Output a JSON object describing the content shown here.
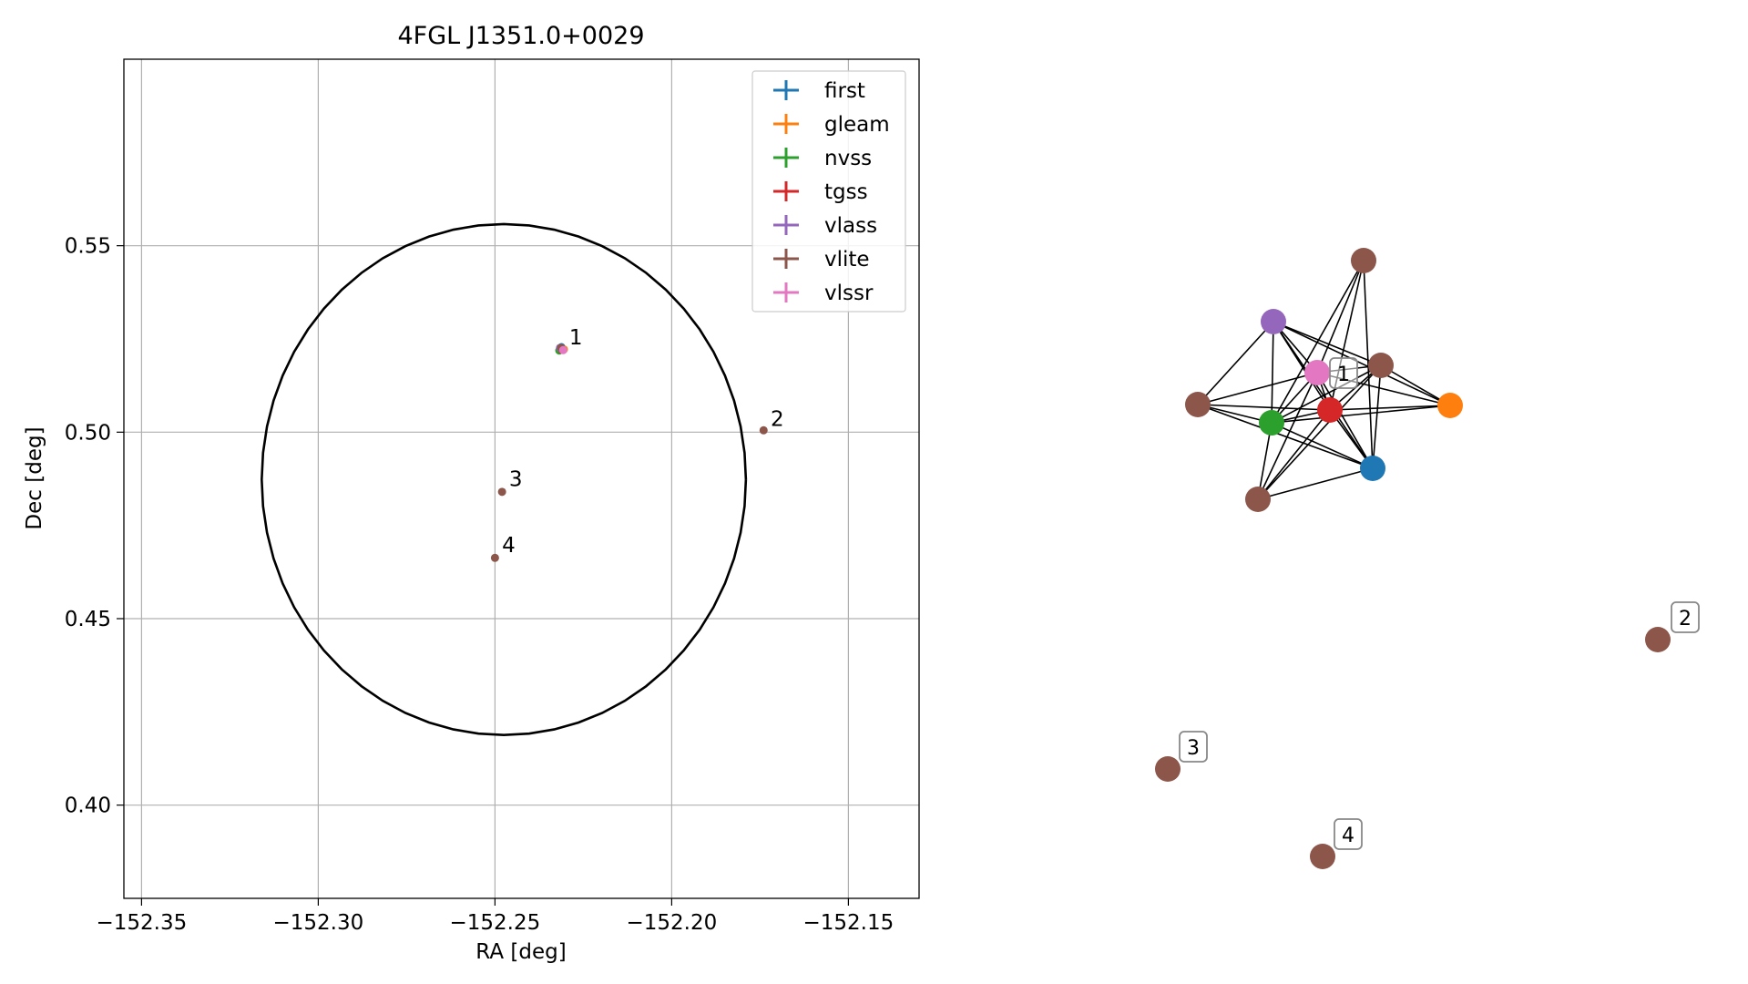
{
  "chart_data": [
    {
      "type": "scatter",
      "title": "4FGL J1351.0+0029",
      "xlabel": "RA [deg]",
      "ylabel": "Dec [deg]",
      "xlim": [
        -152.355,
        -152.13
      ],
      "ylim": [
        0.375,
        0.6
      ],
      "xticks": [
        -152.35,
        -152.3,
        -152.25,
        -152.2,
        -152.15
      ],
      "xtick_labels": [
        "−152.35",
        "−152.30",
        "−152.25",
        "−152.20",
        "−152.15"
      ],
      "yticks": [
        0.4,
        0.45,
        0.5,
        0.55
      ],
      "ytick_labels": [
        "0.40",
        "0.45",
        "0.50",
        "0.55"
      ],
      "grid": true,
      "legend_position": "top-right",
      "circle": {
        "center": [
          -152.2475,
          0.4873
        ],
        "radius": 0.0685,
        "color": "#000000"
      },
      "series": [
        {
          "name": "first",
          "color": "#1f77b4",
          "points": [
            [
              -152.2312,
              0.5228
            ]
          ]
        },
        {
          "name": "gleam",
          "color": "#ff7f0e",
          "points": [
            [
              -152.2305,
              0.5222
            ]
          ]
        },
        {
          "name": "nvss",
          "color": "#2ca02c",
          "points": [
            [
              -152.2318,
              0.5219
            ]
          ]
        },
        {
          "name": "tgss",
          "color": "#d62728",
          "points": [
            [
              -152.2311,
              0.5221
            ]
          ]
        },
        {
          "name": "vlass",
          "color": "#9467bd",
          "points": [
            [
              -152.2316,
              0.5226
            ]
          ]
        },
        {
          "name": "vlite",
          "color": "#8c564b",
          "points": [
            [
              -152.2313,
              0.5226
            ],
            [
              -152.174,
              0.5005
            ],
            [
              -152.248,
              0.484
            ],
            [
              -152.25,
              0.4663
            ]
          ]
        },
        {
          "name": "vlssr",
          "color": "#e377c2",
          "points": [
            [
              -152.2307,
              0.522
            ]
          ]
        }
      ],
      "annotations": [
        {
          "text": "1",
          "x": -152.229,
          "y": 0.5235
        },
        {
          "text": "2",
          "x": -152.172,
          "y": 0.5017
        },
        {
          "text": "3",
          "x": -152.246,
          "y": 0.4855
        },
        {
          "text": "4",
          "x": -152.248,
          "y": 0.4678
        }
      ]
    },
    {
      "type": "network",
      "node_colors": {
        "first": "#1f77b4",
        "gleam": "#ff7f0e",
        "nvss": "#2ca02c",
        "tgss": "#d62728",
        "vlass": "#9467bd",
        "vlite": "#8c564b",
        "vlssr": "#e377c2"
      },
      "labels": [
        "1",
        "2",
        "3",
        "4"
      ]
    }
  ]
}
